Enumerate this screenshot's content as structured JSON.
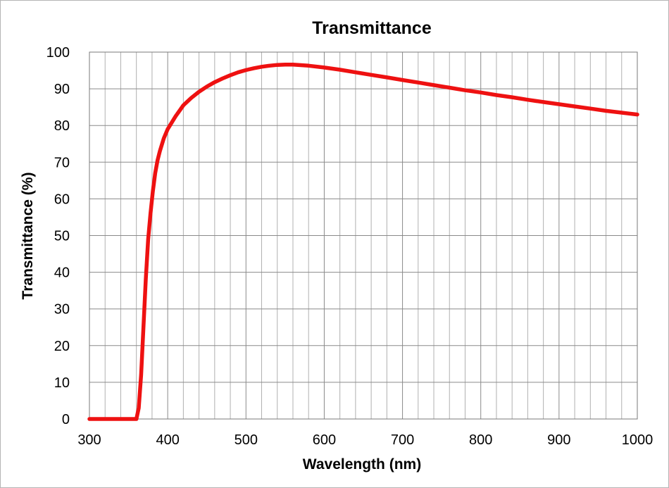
{
  "chart_data": {
    "type": "line",
    "title": "Transmittance",
    "xlabel": "Wavelength (nm)",
    "ylabel": "Transmittance (%)",
    "xlim": [
      300,
      1000
    ],
    "ylim": [
      0,
      100
    ],
    "x_ticks": [
      300,
      400,
      500,
      600,
      700,
      800,
      900,
      1000
    ],
    "y_ticks": [
      0,
      10,
      20,
      30,
      40,
      50,
      60,
      70,
      80,
      90,
      100
    ],
    "x_tick_labels": [
      "300",
      "400",
      "500",
      "600",
      "700",
      "800",
      "900",
      "1000"
    ],
    "y_tick_labels": [
      "0",
      "10",
      "20",
      "30",
      "40",
      "50",
      "60",
      "70",
      "80",
      "90",
      "100"
    ],
    "x_minor_step": 20,
    "y_minor_step": 10,
    "grid": true,
    "legend": "none",
    "series": [
      {
        "color": "#ee1111",
        "x": [
          300,
          320,
          340,
          353,
          360,
          363,
          366,
          369,
          372,
          375,
          378,
          381,
          384,
          387,
          390,
          395,
          400,
          410,
          420,
          430,
          440,
          450,
          460,
          470,
          480,
          490,
          500,
          510,
          520,
          530,
          540,
          550,
          560,
          580,
          600,
          620,
          640,
          660,
          680,
          700,
          720,
          740,
          760,
          780,
          800,
          820,
          840,
          860,
          880,
          900,
          920,
          940,
          960,
          980,
          1000
        ],
        "y": [
          0,
          0,
          0,
          0,
          0,
          3,
          12,
          25,
          38,
          49,
          56,
          62,
          67,
          70.5,
          73,
          76.5,
          79,
          82.5,
          85.5,
          87.5,
          89.2,
          90.6,
          91.8,
          92.8,
          93.7,
          94.5,
          95.1,
          95.6,
          96,
          96.3,
          96.5,
          96.6,
          96.6,
          96.3,
          95.8,
          95.2,
          94.5,
          93.8,
          93.1,
          92.4,
          91.7,
          91,
          90.3,
          89.6,
          89,
          88.3,
          87.7,
          87,
          86.4,
          85.8,
          85.2,
          84.6,
          84,
          83.5,
          83
        ]
      }
    ]
  }
}
